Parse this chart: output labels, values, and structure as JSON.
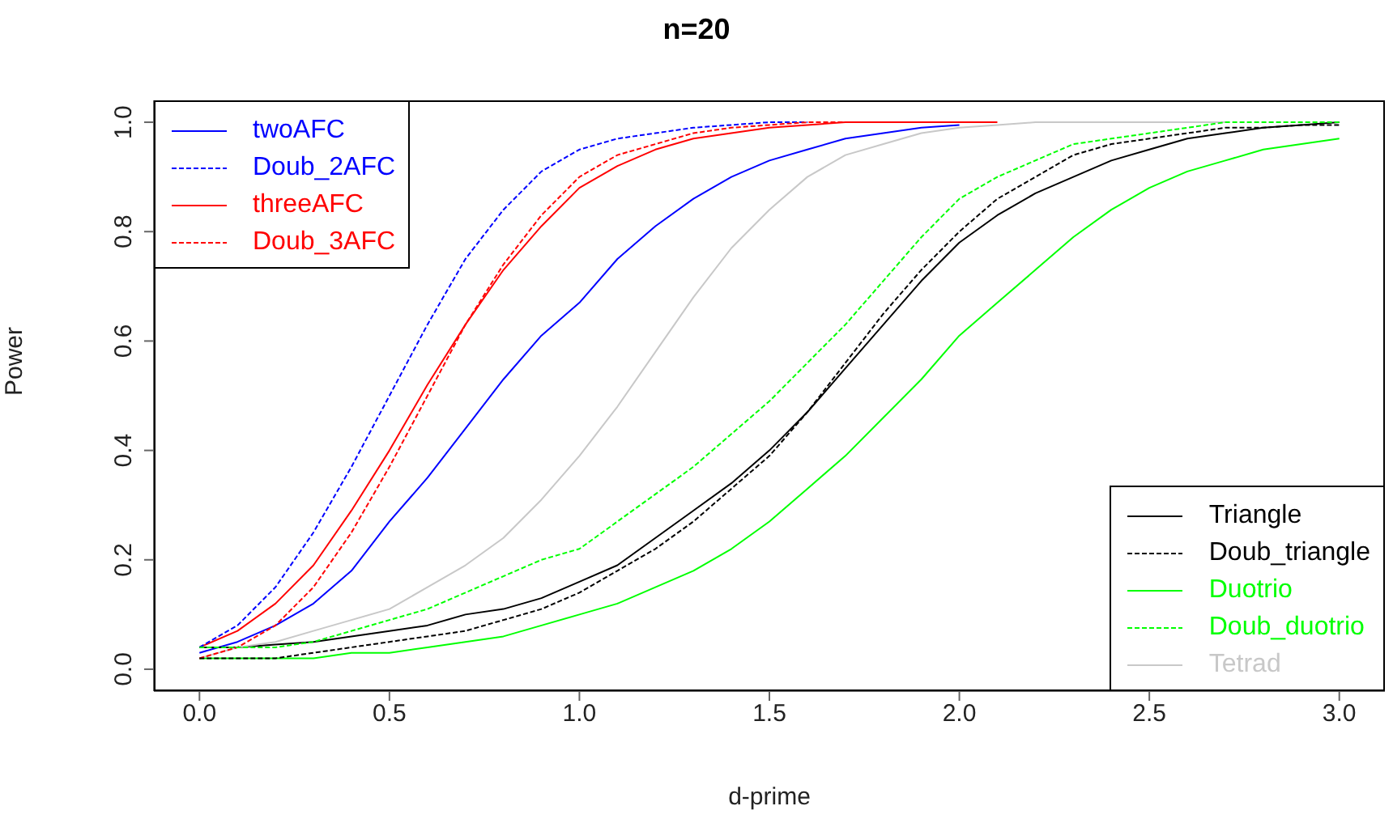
{
  "chart_data": {
    "type": "line",
    "title": "n=20",
    "xlabel": "d-prime",
    "ylabel": "Power",
    "x": [
      0,
      0.1,
      0.2,
      0.3,
      0.4,
      0.5,
      0.6,
      0.7,
      0.8,
      0.9,
      1,
      1.1,
      1.2,
      1.3,
      1.4,
      1.5,
      1.6,
      1.7,
      1.8,
      1.9,
      2,
      2.1,
      2.2,
      2.3,
      2.4,
      2.5,
      2.6,
      2.7,
      2.8,
      2.9,
      3
    ],
    "xlim": [
      -0.12,
      3.12
    ],
    "xticks": [
      {
        "value": 0,
        "label": "0.0"
      },
      0.5,
      {
        "value": 1,
        "label": "1.0"
      },
      1.5,
      {
        "value": 2,
        "label": "2.0"
      },
      2.5,
      {
        "value": 3,
        "label": "3.0"
      }
    ],
    "ylim": [
      -0.04,
      1.04
    ],
    "yticks": [
      {
        "value": 0,
        "label": "0.0"
      },
      0.2,
      0.4,
      0.6,
      0.8,
      {
        "value": 1,
        "label": "1.0"
      }
    ],
    "legend": "top left",
    "grid": false,
    "marker": "none",
    "series": [
      {
        "name": "twoAFC",
        "color": "#0000ff",
        "line_style": "solid",
        "values": [
          0.03,
          0.05,
          0.08,
          0.12,
          0.18,
          0.27,
          0.35,
          0.44,
          0.53,
          0.61,
          0.67,
          0.75,
          0.81,
          0.86,
          0.9,
          0.93,
          0.95,
          0.97,
          0.98,
          0.99,
          0.995,
          null,
          null,
          null,
          null,
          null,
          null,
          null,
          null,
          null,
          null
        ]
      },
      {
        "name": "Doub_2AFC",
        "color": "#0000ff",
        "line_style": "dotted",
        "values": [
          0.04,
          0.08,
          0.15,
          0.25,
          0.37,
          0.5,
          0.63,
          0.75,
          0.84,
          0.91,
          0.95,
          0.97,
          0.98,
          0.99,
          0.995,
          1,
          1,
          null,
          null,
          null,
          null,
          null,
          null,
          null,
          null,
          null,
          null,
          null,
          null,
          null,
          null
        ]
      },
      {
        "name": "threeAFC",
        "color": "#ff0000",
        "line_style": "solid",
        "values": [
          0.04,
          0.07,
          0.12,
          0.19,
          0.29,
          0.4,
          0.52,
          0.63,
          0.73,
          0.81,
          0.88,
          0.92,
          0.95,
          0.97,
          0.98,
          0.99,
          0.995,
          1,
          1,
          1,
          1,
          1,
          null,
          null,
          null,
          null,
          null,
          null,
          null,
          null,
          null
        ]
      },
      {
        "name": "Doub_3AFC",
        "color": "#ff0000",
        "line_style": "dotted",
        "values": [
          0.02,
          0.04,
          0.08,
          0.15,
          0.25,
          0.37,
          0.5,
          0.63,
          0.74,
          0.83,
          0.9,
          0.94,
          0.96,
          0.98,
          0.99,
          0.995,
          1,
          1,
          1,
          1,
          null,
          null,
          null,
          null,
          null,
          null,
          null,
          null,
          null,
          null,
          null
        ]
      },
      {
        "name": "Triangle",
        "color": "#000000",
        "line_style": "solid",
        "values": [
          0.04,
          0.04,
          0.045,
          0.05,
          0.06,
          0.07,
          0.08,
          0.1,
          0.11,
          0.13,
          0.16,
          0.19,
          0.24,
          0.29,
          0.34,
          0.4,
          0.47,
          0.55,
          0.63,
          0.71,
          0.78,
          0.83,
          0.87,
          0.9,
          0.93,
          0.95,
          0.97,
          0.98,
          0.99,
          0.995,
          1
        ]
      },
      {
        "name": "Doub_triangle",
        "color": "#000000",
        "line_style": "dotted",
        "values": [
          0.02,
          0.02,
          0.02,
          0.03,
          0.04,
          0.05,
          0.06,
          0.07,
          0.09,
          0.11,
          0.14,
          0.18,
          0.22,
          0.27,
          0.33,
          0.39,
          0.47,
          0.56,
          0.65,
          0.73,
          0.8,
          0.86,
          0.9,
          0.94,
          0.96,
          0.97,
          0.98,
          0.99,
          0.99,
          0.995,
          0.995
        ]
      },
      {
        "name": "Duotrio",
        "color": "#00ff00",
        "line_style": "solid",
        "values": [
          0.02,
          0.02,
          0.02,
          0.02,
          0.03,
          0.03,
          0.04,
          0.05,
          0.06,
          0.08,
          0.1,
          0.12,
          0.15,
          0.18,
          0.22,
          0.27,
          0.33,
          0.39,
          0.46,
          0.53,
          0.61,
          0.67,
          0.73,
          0.79,
          0.84,
          0.88,
          0.91,
          0.93,
          0.95,
          0.96,
          0.97
        ]
      },
      {
        "name": "Doub_duotrio",
        "color": "#00ff00",
        "line_style": "dotted",
        "values": [
          0.04,
          0.04,
          0.04,
          0.05,
          0.07,
          0.09,
          0.11,
          0.14,
          0.17,
          0.2,
          0.22,
          0.27,
          0.32,
          0.37,
          0.43,
          0.49,
          0.56,
          0.63,
          0.71,
          0.79,
          0.86,
          0.9,
          0.93,
          0.96,
          0.97,
          0.98,
          0.99,
          1,
          1,
          1,
          1
        ]
      },
      {
        "name": "Tetrad",
        "color": "#c8c8c8",
        "line_style": "solid",
        "values": [
          0.02,
          0.04,
          0.05,
          0.07,
          0.09,
          0.11,
          0.15,
          0.19,
          0.24,
          0.31,
          0.39,
          0.48,
          0.58,
          0.68,
          0.77,
          0.84,
          0.9,
          0.94,
          0.96,
          0.98,
          0.99,
          0.995,
          1,
          1,
          1,
          1,
          1,
          1,
          null,
          null,
          null
        ]
      }
    ]
  }
}
